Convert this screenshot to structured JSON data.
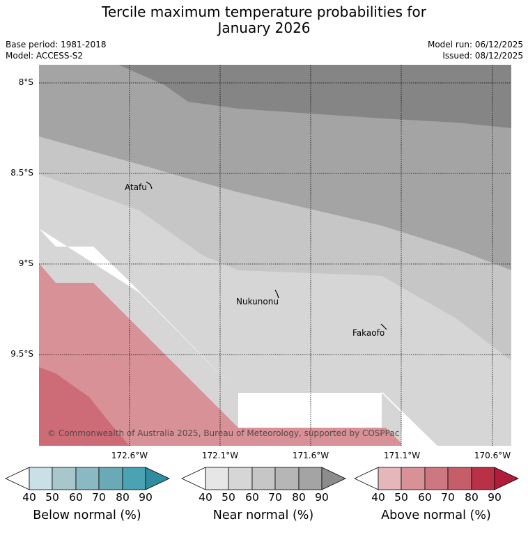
{
  "title": {
    "line1": "Tercile maximum temperature probabilities for",
    "line2": "January 2026"
  },
  "meta": {
    "base_period": "Base period: 1981-2018",
    "model": "Model: ACCESS-S2",
    "model_run": "Model run: 06/12/2025",
    "issued": "Issued: 08/12/2025"
  },
  "map": {
    "latitude_labels": [
      "8°S",
      "8.5°S",
      "9°S",
      "9.5°S"
    ],
    "longitude_labels": [
      "172.6°W",
      "172.1°W",
      "171.6°W",
      "171.1°W",
      "170.6°W"
    ],
    "places": [
      "Atafu",
      "Nukunonu",
      "Fakaofo"
    ],
    "copyright": "© Commonwealth of Australia 2025, Bureau of Meteorology, supported by COSPPac"
  },
  "legend": {
    "ticks": [
      "40",
      "50",
      "60",
      "70",
      "80",
      "90"
    ],
    "below": {
      "title": "Below normal (%)",
      "colors": [
        "#c9e0e6",
        "#a8c7cd",
        "#8ab8c3",
        "#6aaab7",
        "#4aa2b3",
        "#2f8d9f"
      ]
    },
    "near": {
      "title": "Near normal (%)",
      "colors": [
        "#e6e6e6",
        "#d6d6d6",
        "#c6c6c6",
        "#b6b6b6",
        "#a4a4a4",
        "#8c8c8c"
      ]
    },
    "above": {
      "title": "Above normal (%)",
      "colors": [
        "#e5b7bb",
        "#d79197",
        "#cd7880",
        "#c45e69",
        "#b93146",
        "#b01c3a"
      ]
    }
  }
}
